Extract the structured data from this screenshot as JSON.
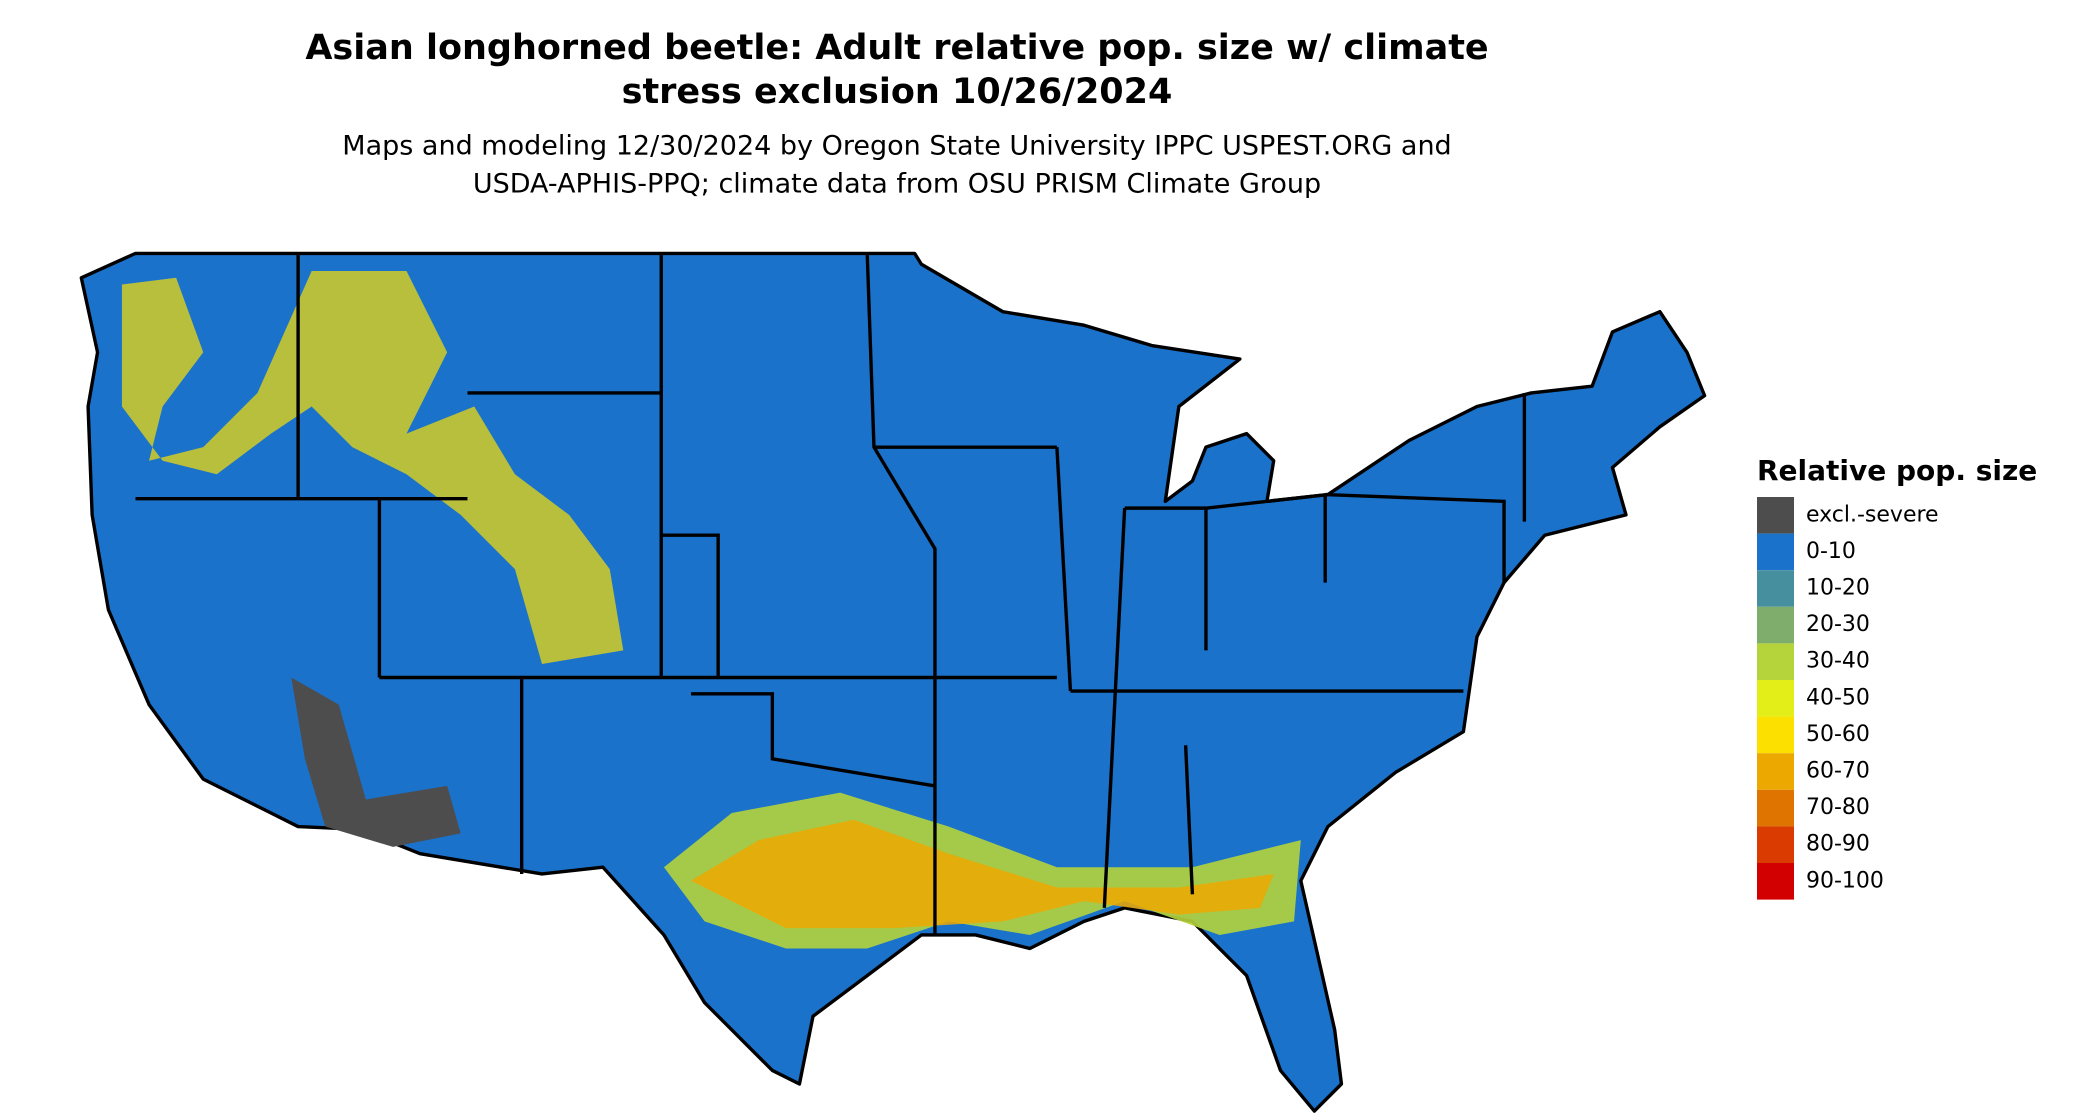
{
  "header": {
    "title_lines": [
      "Asian longhorned beetle: Adult relative pop. size w/ climate",
      "stress exclusion 10/26/2024"
    ],
    "subtitle_lines": [
      "Maps and modeling 12/30/2024 by Oregon State University IPPC USPEST.ORG and",
      "USDA-APHIS-PPQ; climate data from OSU PRISM Climate Group"
    ]
  },
  "legend": {
    "title": "Relative pop. size",
    "items": [
      {
        "label": "excl.-severe",
        "color": "#4d4d4d"
      },
      {
        "label": "0-10",
        "color": "#1b72cb"
      },
      {
        "label": "10-20",
        "color": "#468f9f"
      },
      {
        "label": "20-30",
        "color": "#7fad6b"
      },
      {
        "label": "30-40",
        "color": "#b5d43b"
      },
      {
        "label": "40-50",
        "color": "#e3ee18"
      },
      {
        "label": "50-60",
        "color": "#fbe000"
      },
      {
        "label": "60-70",
        "color": "#eda800"
      },
      {
        "label": "70-80",
        "color": "#e07400"
      },
      {
        "label": "80-90",
        "color": "#d93b00"
      },
      {
        "label": "90-100",
        "color": "#d20000"
      }
    ]
  }
}
